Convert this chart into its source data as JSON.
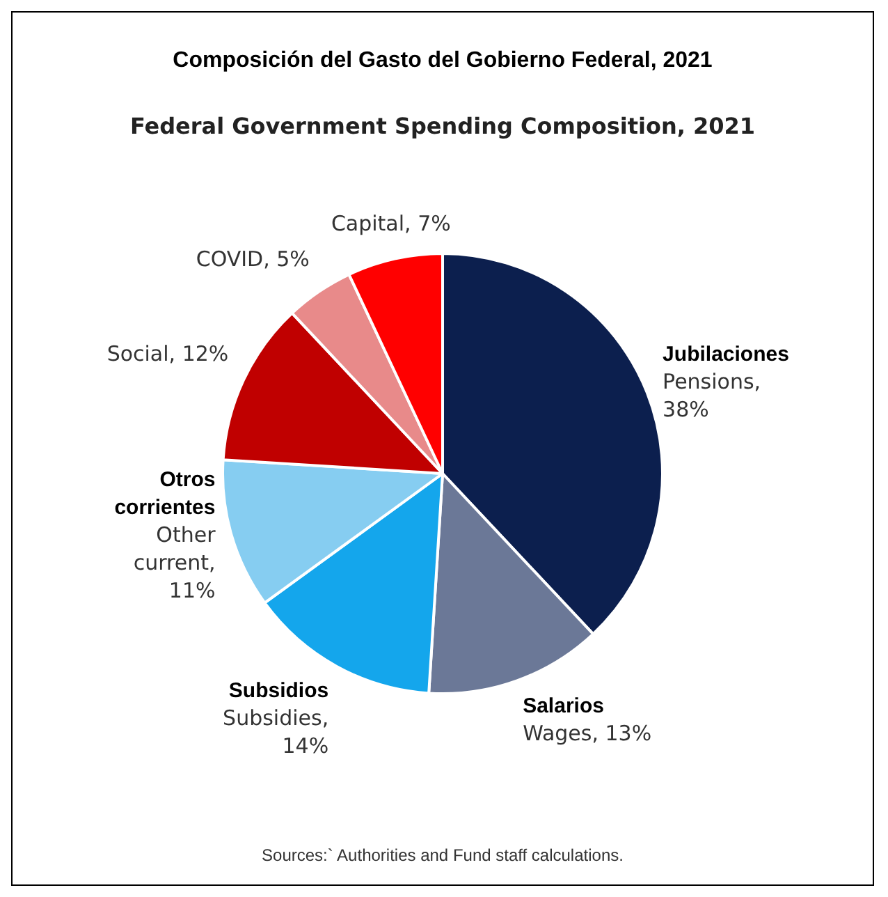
{
  "chart_data": {
    "type": "pie",
    "title": "Composición del Gasto del Gobierno Federal, 2021",
    "subtitle": "Federal Government Spending Composition, 2021",
    "categories": [
      "Jubilaciones",
      "Salarios",
      "Subsidios",
      "Otros\ncorrientes",
      null,
      null,
      null
    ],
    "values": [
      38,
      13,
      14,
      11,
      12,
      5,
      7
    ],
    "value_labels": [
      "Pensions,\n38%",
      "Wages, 13%",
      "Subsidies,\n14%",
      "Other\ncurrent,\n11%",
      "Social, 12%",
      "COVID, 5%",
      "Capital, 7%"
    ],
    "colors": [
      "#0c1f4e",
      "#6b7897",
      "#14a6ec",
      "#86cdf1",
      "#c00000",
      "#e88a8a",
      "#ff0000"
    ],
    "annotations": [
      "Sources:` Authorities and Fund staff calculations."
    ],
    "legend": false
  }
}
